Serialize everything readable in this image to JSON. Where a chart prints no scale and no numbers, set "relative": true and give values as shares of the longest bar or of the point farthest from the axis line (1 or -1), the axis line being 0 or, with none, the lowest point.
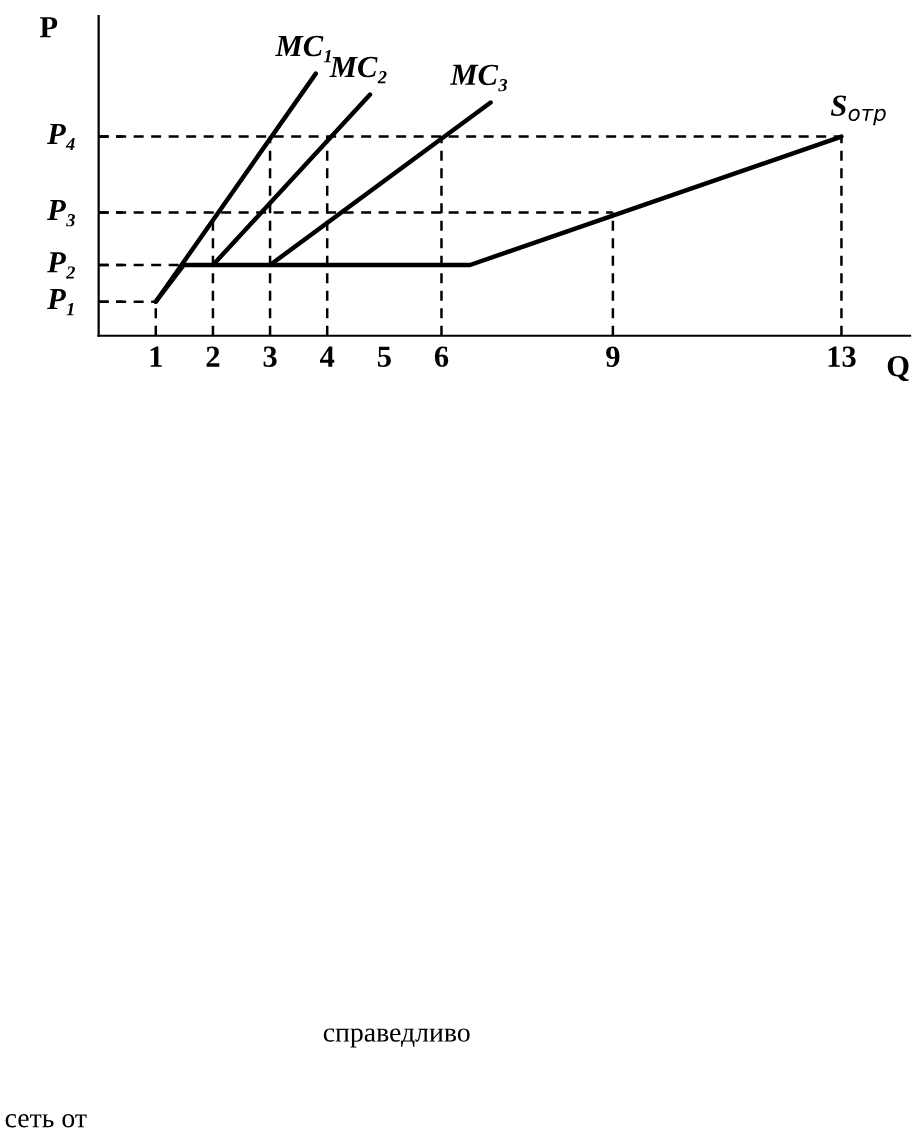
{
  "chart_data": {
    "type": "line",
    "xlabel": "Q",
    "ylabel": "P",
    "relative": true,
    "legend": false,
    "grid": false,
    "xlim": [
      0,
      14.2
    ],
    "xticks": [
      1,
      2,
      3,
      4,
      5,
      6,
      9,
      13
    ],
    "series": [
      {
        "name": "MC₁",
        "color": "#000000",
        "x": [
          1,
          3.8
        ],
        "values": [
          0.13,
          1
        ],
        "line_style": "solid"
      },
      {
        "name": "MC₂",
        "color": "#000000",
        "x": [
          2,
          4.75
        ],
        "values": [
          0.27,
          0.92
        ],
        "line_style": "solid"
      },
      {
        "name": "MC₃",
        "color": "#000000",
        "x": [
          3,
          6.86
        ],
        "values": [
          0.27,
          0.89
        ],
        "line_style": "solid"
      },
      {
        "name": "S$_{отр}$",
        "color": "#000000",
        "x": [
          1,
          1.49,
          6.5,
          13
        ],
        "values": [
          0.13,
          0.27,
          0.27,
          0.76
        ],
        "line_style": "solid"
      },
      {
        "color": "#000000",
        "x": [
          0,
          1
        ],
        "values": [
          0.13,
          0.13
        ],
        "line_style": "dashed"
      },
      {
        "color": "#000000",
        "x": [
          0,
          1.49
        ],
        "values": [
          0.27,
          0.27
        ],
        "line_style": "dashed"
      },
      {
        "color": "#000000",
        "x": [
          0,
          9
        ],
        "values": [
          0.47,
          0.47
        ],
        "line_style": "dashed"
      },
      {
        "color": "#000000",
        "x": [
          0,
          13
        ],
        "values": [
          0.76,
          0.76
        ],
        "line_style": "dashed"
      },
      {
        "color": "#000000",
        "x": [
          1,
          1
        ],
        "values": [
          0,
          0.13
        ],
        "line_style": "dashed"
      },
      {
        "color": "#000000",
        "x": [
          2,
          2
        ],
        "values": [
          0,
          0.47
        ],
        "line_style": "dashed"
      },
      {
        "color": "#000000",
        "x": [
          3,
          3
        ],
        "values": [
          0,
          0.76
        ],
        "line_style": "dashed"
      },
      {
        "color": "#000000",
        "x": [
          4,
          4
        ],
        "values": [
          0,
          0.76
        ],
        "line_style": "dashed"
      },
      {
        "color": "#000000",
        "x": [
          6,
          6
        ],
        "values": [
          0,
          0.76
        ],
        "line_style": "dashed"
      },
      {
        "color": "#000000",
        "x": [
          9,
          9
        ],
        "values": [
          0,
          0.47
        ],
        "line_style": "dashed"
      },
      {
        "color": "#000000",
        "x": [
          13,
          13
        ],
        "values": [
          0,
          0.76
        ],
        "line_style": "dashed"
      }
    ],
    "ref_lines": [
      {
        "axis": "y",
        "value": 0.13,
        "label": "P₁",
        "line_style": "dashed"
      },
      {
        "axis": "y",
        "value": 0.27,
        "label": "P₂",
        "line_style": "dashed"
      },
      {
        "axis": "y",
        "value": 0.47,
        "label": "P₃",
        "line_style": "dashed"
      },
      {
        "axis": "y",
        "value": 0.76,
        "label": "P₄",
        "line_style": "dashed"
      }
    ],
    "annotations": [
      "справедливо",
      "сеть от"
    ]
  }
}
